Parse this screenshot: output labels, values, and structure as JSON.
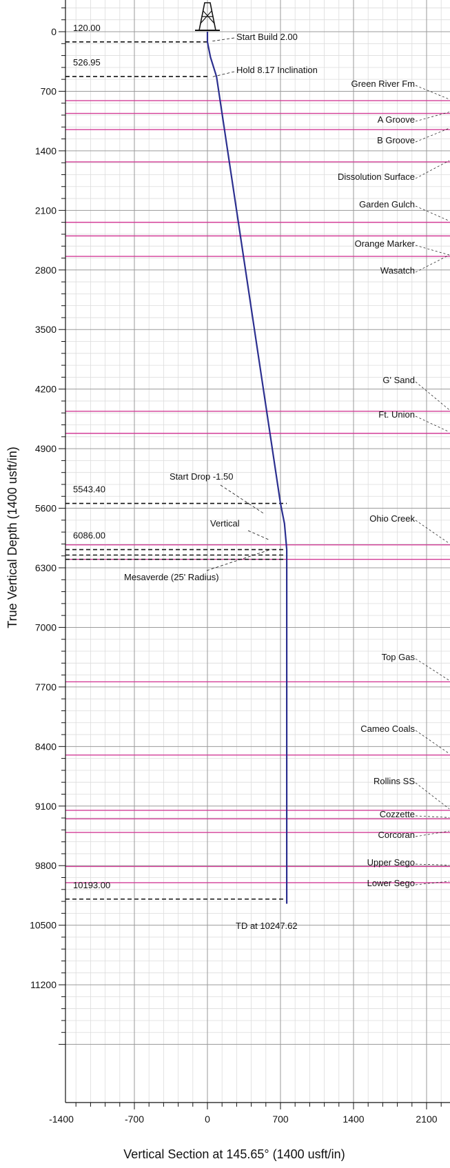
{
  "chart_data": {
    "type": "line",
    "title": "",
    "xlabel": "Vertical Section at 145.65° (1400 usft/in)",
    "ylabel": "True Vertical Depth (1400 usft/in)",
    "xlim": [
      -1680,
      2480
    ],
    "ylim": [
      12000,
      -240
    ],
    "x_ticks": [
      -1400,
      -700,
      0,
      700,
      1400,
      2100
    ],
    "y_ticks": [
      0,
      700,
      1400,
      2100,
      2800,
      3500,
      4200,
      4900,
      5600,
      6300,
      7000,
      7700,
      8400,
      9100,
      9800,
      10500,
      11200
    ],
    "grid": true,
    "series": [
      {
        "type": "line",
        "color": "#2b2f8f",
        "x": [
          0,
          0,
          29,
          87,
          700,
          738,
          760,
          760,
          760
        ],
        "y": [
          0,
          120,
          300,
          527,
          5543,
          5780,
          6086,
          6200,
          10248
        ]
      }
    ],
    "markers": [
      {
        "depth": 120.0,
        "depth_label": "120.00",
        "annotation": "Start Build 2.00"
      },
      {
        "depth": 526.95,
        "depth_label": "526.95",
        "annotation": "Hold 8.17 Inclination"
      },
      {
        "depth": 5543.4,
        "depth_label": "5543.40",
        "annotation": "Start Drop -1.50"
      },
      {
        "depth": 6086.0,
        "depth_label": "6086.00",
        "annotation": "Vertical"
      },
      {
        "depth": 6200.0,
        "depth_label": "",
        "annotation": "Mesaverde (25' Radius)"
      },
      {
        "depth": 10193.0,
        "depth_label": "10193.00",
        "annotation": "TD at 10247.62"
      }
    ],
    "formations": [
      {
        "name": "Green River Fm",
        "depth": 810
      },
      {
        "name": "A Groove",
        "depth": 960
      },
      {
        "name": "B Groove",
        "depth": 1150
      },
      {
        "name": "Dissolution Surface",
        "depth": 1530
      },
      {
        "name": "Garden Gulch",
        "depth": 2240
      },
      {
        "name": "",
        "depth": 2400
      },
      {
        "name": "Orange Marker",
        "depth": 2640
      },
      {
        "name": "Wasatch",
        "depth": 2640
      },
      {
        "name": "G' Sand",
        "depth": 4460
      },
      {
        "name": "Ft. Union",
        "depth": 4720
      },
      {
        "name": "Ohio Creek",
        "depth": 6030
      },
      {
        "name": "Mesaverde (25' Radius)",
        "depth": 6200
      },
      {
        "name": "Top Gas",
        "depth": 7640
      },
      {
        "name": "Cameo Coals",
        "depth": 8500
      },
      {
        "name": "Rollins SS",
        "depth": 9150
      },
      {
        "name": "Cozzette",
        "depth": 9250
      },
      {
        "name": "Corcoran",
        "depth": 9410
      },
      {
        "name": "Upper Sego",
        "depth": 9810
      },
      {
        "name": "Lower Sego",
        "depth": 10000
      }
    ],
    "colors": {
      "wellpath": "#2b2f8f",
      "formation": "#d23c96",
      "grid_major": "#9a9a9a",
      "grid_minor": "#dcdcdc"
    },
    "icons": {
      "rig": "derrick-icon"
    }
  }
}
